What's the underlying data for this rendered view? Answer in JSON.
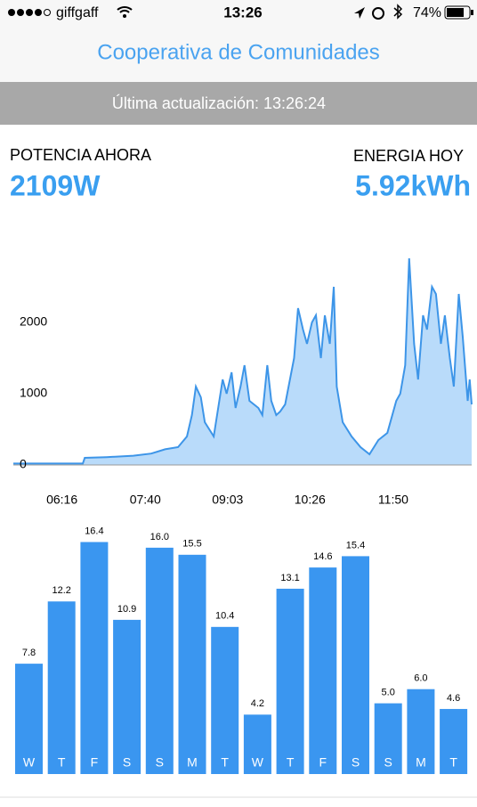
{
  "status_bar": {
    "carrier": "giffgaff",
    "time": "13:26",
    "battery": "74%"
  },
  "header": {
    "title": "Cooperativa de Comunidades"
  },
  "update_banner": "Última actualización: 13:26:24",
  "metrics": [
    {
      "label": "POTENCIA AHORA",
      "value": "2109W"
    },
    {
      "label": "ENERGIA HOY",
      "value": "5.92kWh"
    }
  ],
  "chart_data": [
    {
      "type": "area",
      "color": "#3d95e8",
      "x": [
        327,
        397,
        399,
        421,
        448,
        466,
        480,
        493,
        502,
        507,
        511,
        516,
        520,
        529,
        538,
        542,
        547,
        551,
        556,
        560,
        565,
        574,
        578,
        583,
        587,
        592,
        596,
        601,
        610,
        614,
        619,
        623,
        628,
        632,
        637,
        641,
        646,
        650,
        653,
        659,
        668,
        677,
        686,
        695,
        704,
        713,
        717,
        722,
        726,
        731,
        735,
        740,
        744,
        749,
        753,
        758,
        762,
        767,
        771,
        776,
        780,
        785,
        787,
        789
      ],
      "values": [
        20,
        20,
        100,
        110,
        130,
        160,
        220,
        250,
        400,
        700,
        1100,
        950,
        600,
        400,
        1200,
        1000,
        1300,
        800,
        1100,
        1400,
        900,
        800,
        700,
        1400,
        900,
        700,
        750,
        850,
        1500,
        2200,
        1900,
        1700,
        2000,
        2100,
        1500,
        2100,
        1700,
        2500,
        1100,
        600,
        400,
        250,
        150,
        350,
        450,
        900,
        1000,
        1400,
        2900,
        1700,
        1200,
        2100,
        1900,
        2500,
        2400,
        1700,
        2100,
        1500,
        1100,
        2400,
        1800,
        900,
        1200,
        850
      ],
      "xlim": [
        327,
        789
      ],
      "xticks": [
        {
          "value": 376,
          "label": "06:16"
        },
        {
          "value": 460,
          "label": "07:40"
        },
        {
          "value": 543,
          "label": "09:03"
        },
        {
          "value": 626,
          "label": "10:26"
        },
        {
          "value": 710,
          "label": "11:50"
        }
      ],
      "ylim": [
        0,
        3000
      ],
      "yticks": [
        0,
        1000,
        2000
      ]
    },
    {
      "type": "bar",
      "color": "#3a96f0",
      "categories": [
        "W",
        "T",
        "F",
        "S",
        "S",
        "M",
        "T",
        "W",
        "T",
        "F",
        "S",
        "S",
        "M",
        "T"
      ],
      "values": [
        7.8,
        12.2,
        16.4,
        10.9,
        16,
        15.5,
        10.4,
        4.2,
        13.1,
        14.6,
        15.4,
        5,
        6,
        4.6
      ],
      "value_labels": [
        "7.8",
        "12.2",
        "16.4",
        "10.9",
        "16.0",
        "15.5",
        "10.4",
        "4.2",
        "13.1",
        "14.6",
        "15.4",
        "5.0",
        "6.0",
        "4.6"
      ],
      "ylim": [
        0,
        17
      ]
    }
  ]
}
